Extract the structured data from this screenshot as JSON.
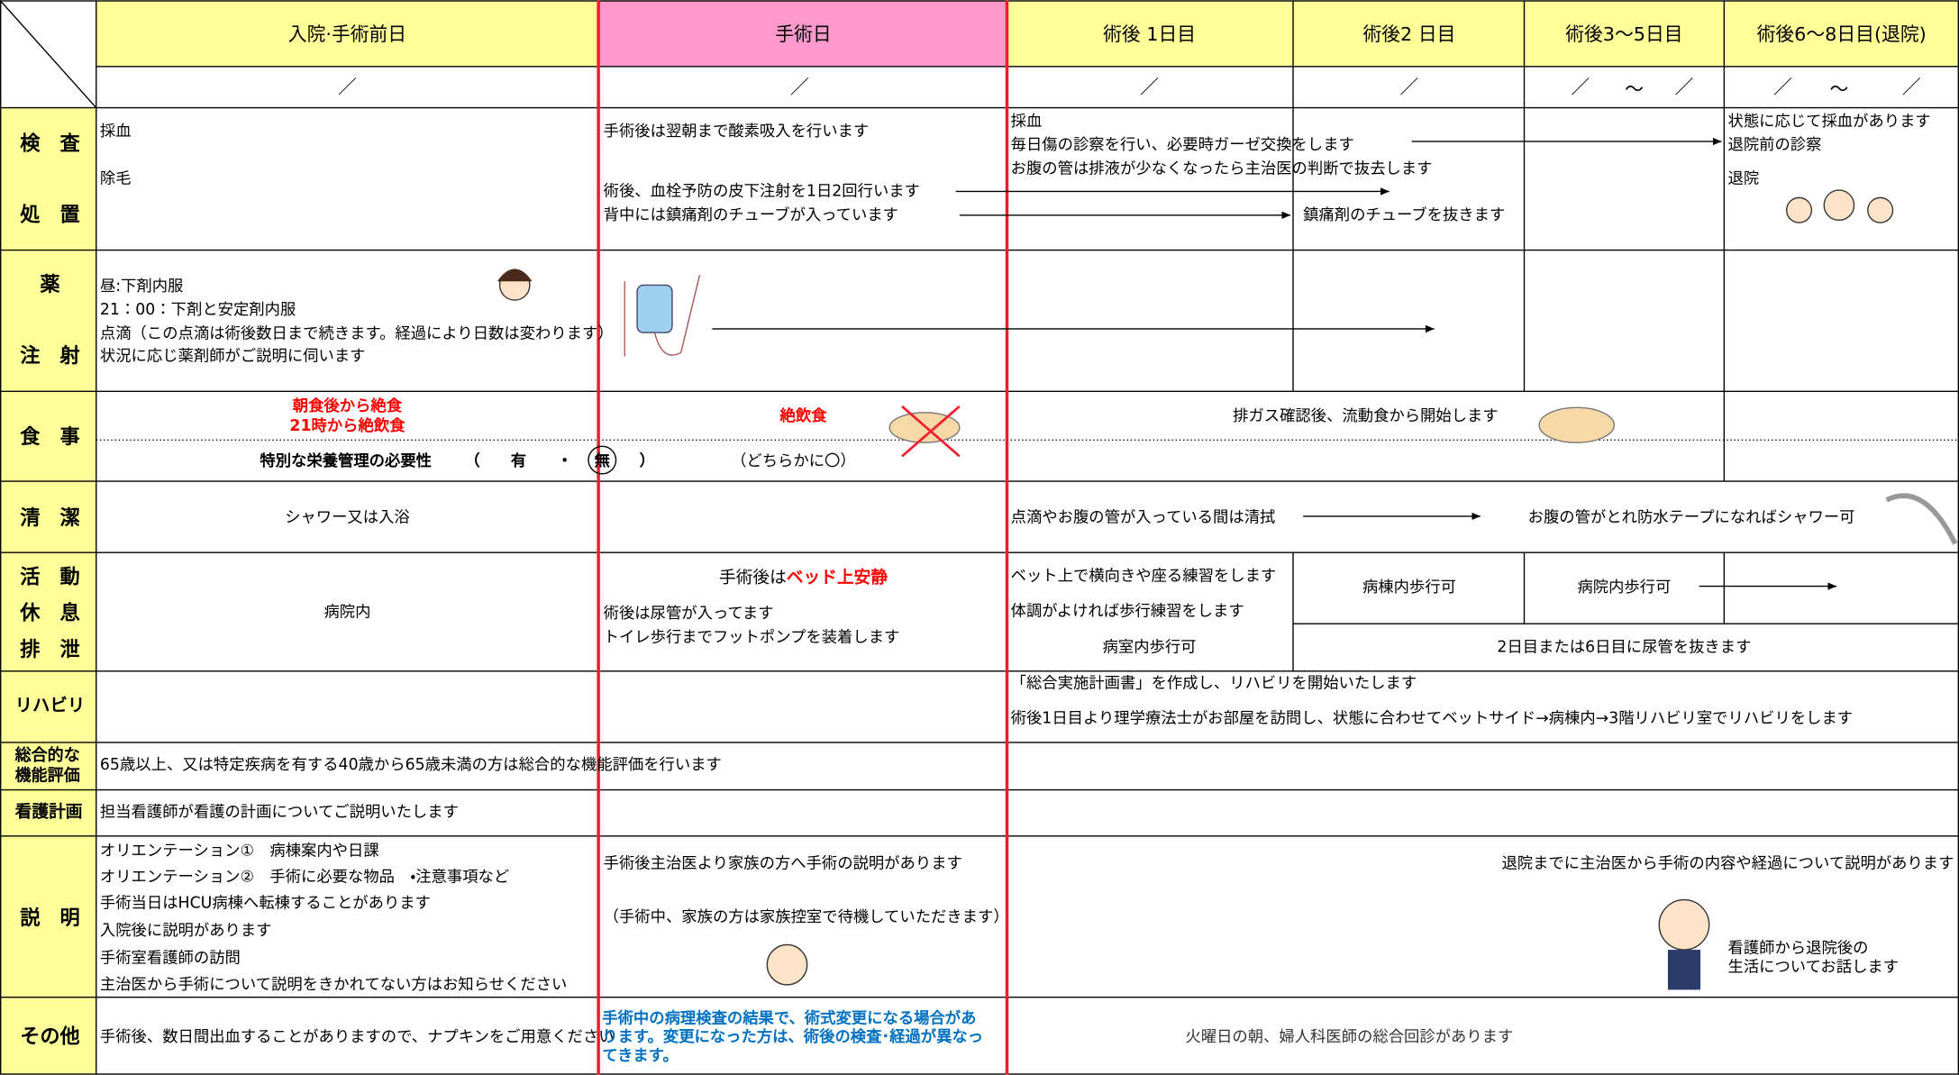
{
  "header": {
    "columns": [
      "入院·手術前日",
      "手術日",
      "術後 1日目",
      "術後2 日目",
      "術後3～5日目",
      "術後6～8日目(退院)"
    ],
    "dates": [
      [
        "／"
      ],
      [
        "／"
      ],
      [
        "／"
      ],
      [
        "／"
      ],
      [
        "／",
        "～",
        "／"
      ],
      [
        "／",
        "～",
        "／"
      ]
    ]
  },
  "rows": [
    {
      "label": [
        "検　査",
        "処　置"
      ],
      "pre_op": [
        "採血",
        "除毛"
      ],
      "surgery": [
        "手術後は翌朝まで酸素吸入を行います",
        "術後、血栓予防の皮下注射を1日2回行います",
        "背中には鎮痛剤のチューブが入っています"
      ],
      "post1": [
        "採血",
        "毎日傷の診察を行い、必要時ガーゼ交換をします",
        "お腹の管は排液が少なくなったら主治医の判断で抜去します"
      ],
      "post2": [
        "鎮痛剤のチューブを抜きます"
      ],
      "discharge": [
        "状態に応じて採血があります",
        "退院前の診察",
        "退院"
      ]
    },
    {
      "label": [
        "薬",
        "注　射"
      ],
      "pre_op": [
        "昼:下剤内服",
        "21：00：下剤と安定剤内服",
        "点滴（この点滴は術後数日まで続きます。経過により日数は変わります）",
        "状況に応じ薬剤師がご説明に伺います"
      ]
    },
    {
      "label": [
        "食　事"
      ],
      "pre_op": [
        "朝食後から絶食",
        "21時から絶飲食"
      ],
      "surgery": [
        "絶飲食"
      ],
      "post": [
        "排ガス確認後、流動食から開始します"
      ],
      "nutrition": {
        "label": "特別な栄養管理の必要性",
        "open": "（",
        "yes": "有",
        "sep": "・",
        "no": "無",
        "close": "）",
        "note": "（どちらかに〇）"
      }
    },
    {
      "label": [
        "清　潔"
      ],
      "pre_op": [
        "シャワー又は入浴"
      ],
      "post": [
        "点滴やお腹の管が入っている間は清拭",
        "お腹の管がとれ防水テープになればシャワー可"
      ]
    },
    {
      "label": [
        "活　動",
        "休　息",
        "排　泄"
      ],
      "pre_op": [
        "病院内"
      ],
      "surgery_rest": {
        "prefix": "手術後は",
        "emphasis": "ベッド上安静"
      },
      "surgery": [
        "術後は尿管が入ってます",
        "トイレ歩行までフットポンプを装着します"
      ],
      "post1": [
        "ベット上で横向きや座る練習をします",
        "体調がよければ歩行練習をします",
        "病室内歩行可"
      ],
      "post2": [
        "病棟内歩行可"
      ],
      "post3": [
        "病院内歩行可"
      ],
      "catheter": [
        "2日目または6日目に尿管を抜きます"
      ]
    },
    {
      "label": [
        "リハビリ"
      ],
      "post": [
        "「総合実施計画書」を作成し、リハビリを開始いたします",
        "術後1日目より理学療法士がお部屋を訪問し、状態に合わせてベットサイド→病棟内→3階リハビリ室でリハビリをします"
      ]
    },
    {
      "label": [
        "総合的な",
        "機能評価"
      ],
      "pre_op": [
        "65歳以上、又は特定疾病を有する40歳から65歳未満の方は総合的な機能評価を行います"
      ]
    },
    {
      "label": [
        "看護計画"
      ],
      "pre_op": [
        "担当看護師が看護の計画についてご説明いたします"
      ]
    },
    {
      "label": [
        "説　明"
      ],
      "pre_op": [
        "オリエンテーション①　病棟案内や日課",
        "オリエンテーション②　手術に必要な物品　・注意事項など",
        "手術当日はHCU病棟へ転棟することがあります",
        "入院後に説明があります",
        "手術室看護師の訪問",
        "主治医から手術について説明をきかれてない方はお知らせください"
      ],
      "surgery": [
        "手術後主治医より家族の方へ手術の説明があります",
        "（手術中、家族の方は家族控室で待機していただきます）"
      ],
      "post": [
        "退院までに主治医から手術の内容や経過について説明があります",
        "看護師から退院後の",
        "生活についてお話します"
      ]
    },
    {
      "label": [
        "その他"
      ],
      "pre_op": [
        "手術後、数日間出血することがありますので、ナプキンをご用意ください"
      ],
      "surgery": [
        "手術中の病理検査の結果で、術式変更になる場合があ",
        "ります。変更になった方は、術後の検査･経過が異なっ",
        "てきます。"
      ],
      "post": [
        "火曜日の朝、婦人科医師の総合回診があります"
      ]
    }
  ]
}
